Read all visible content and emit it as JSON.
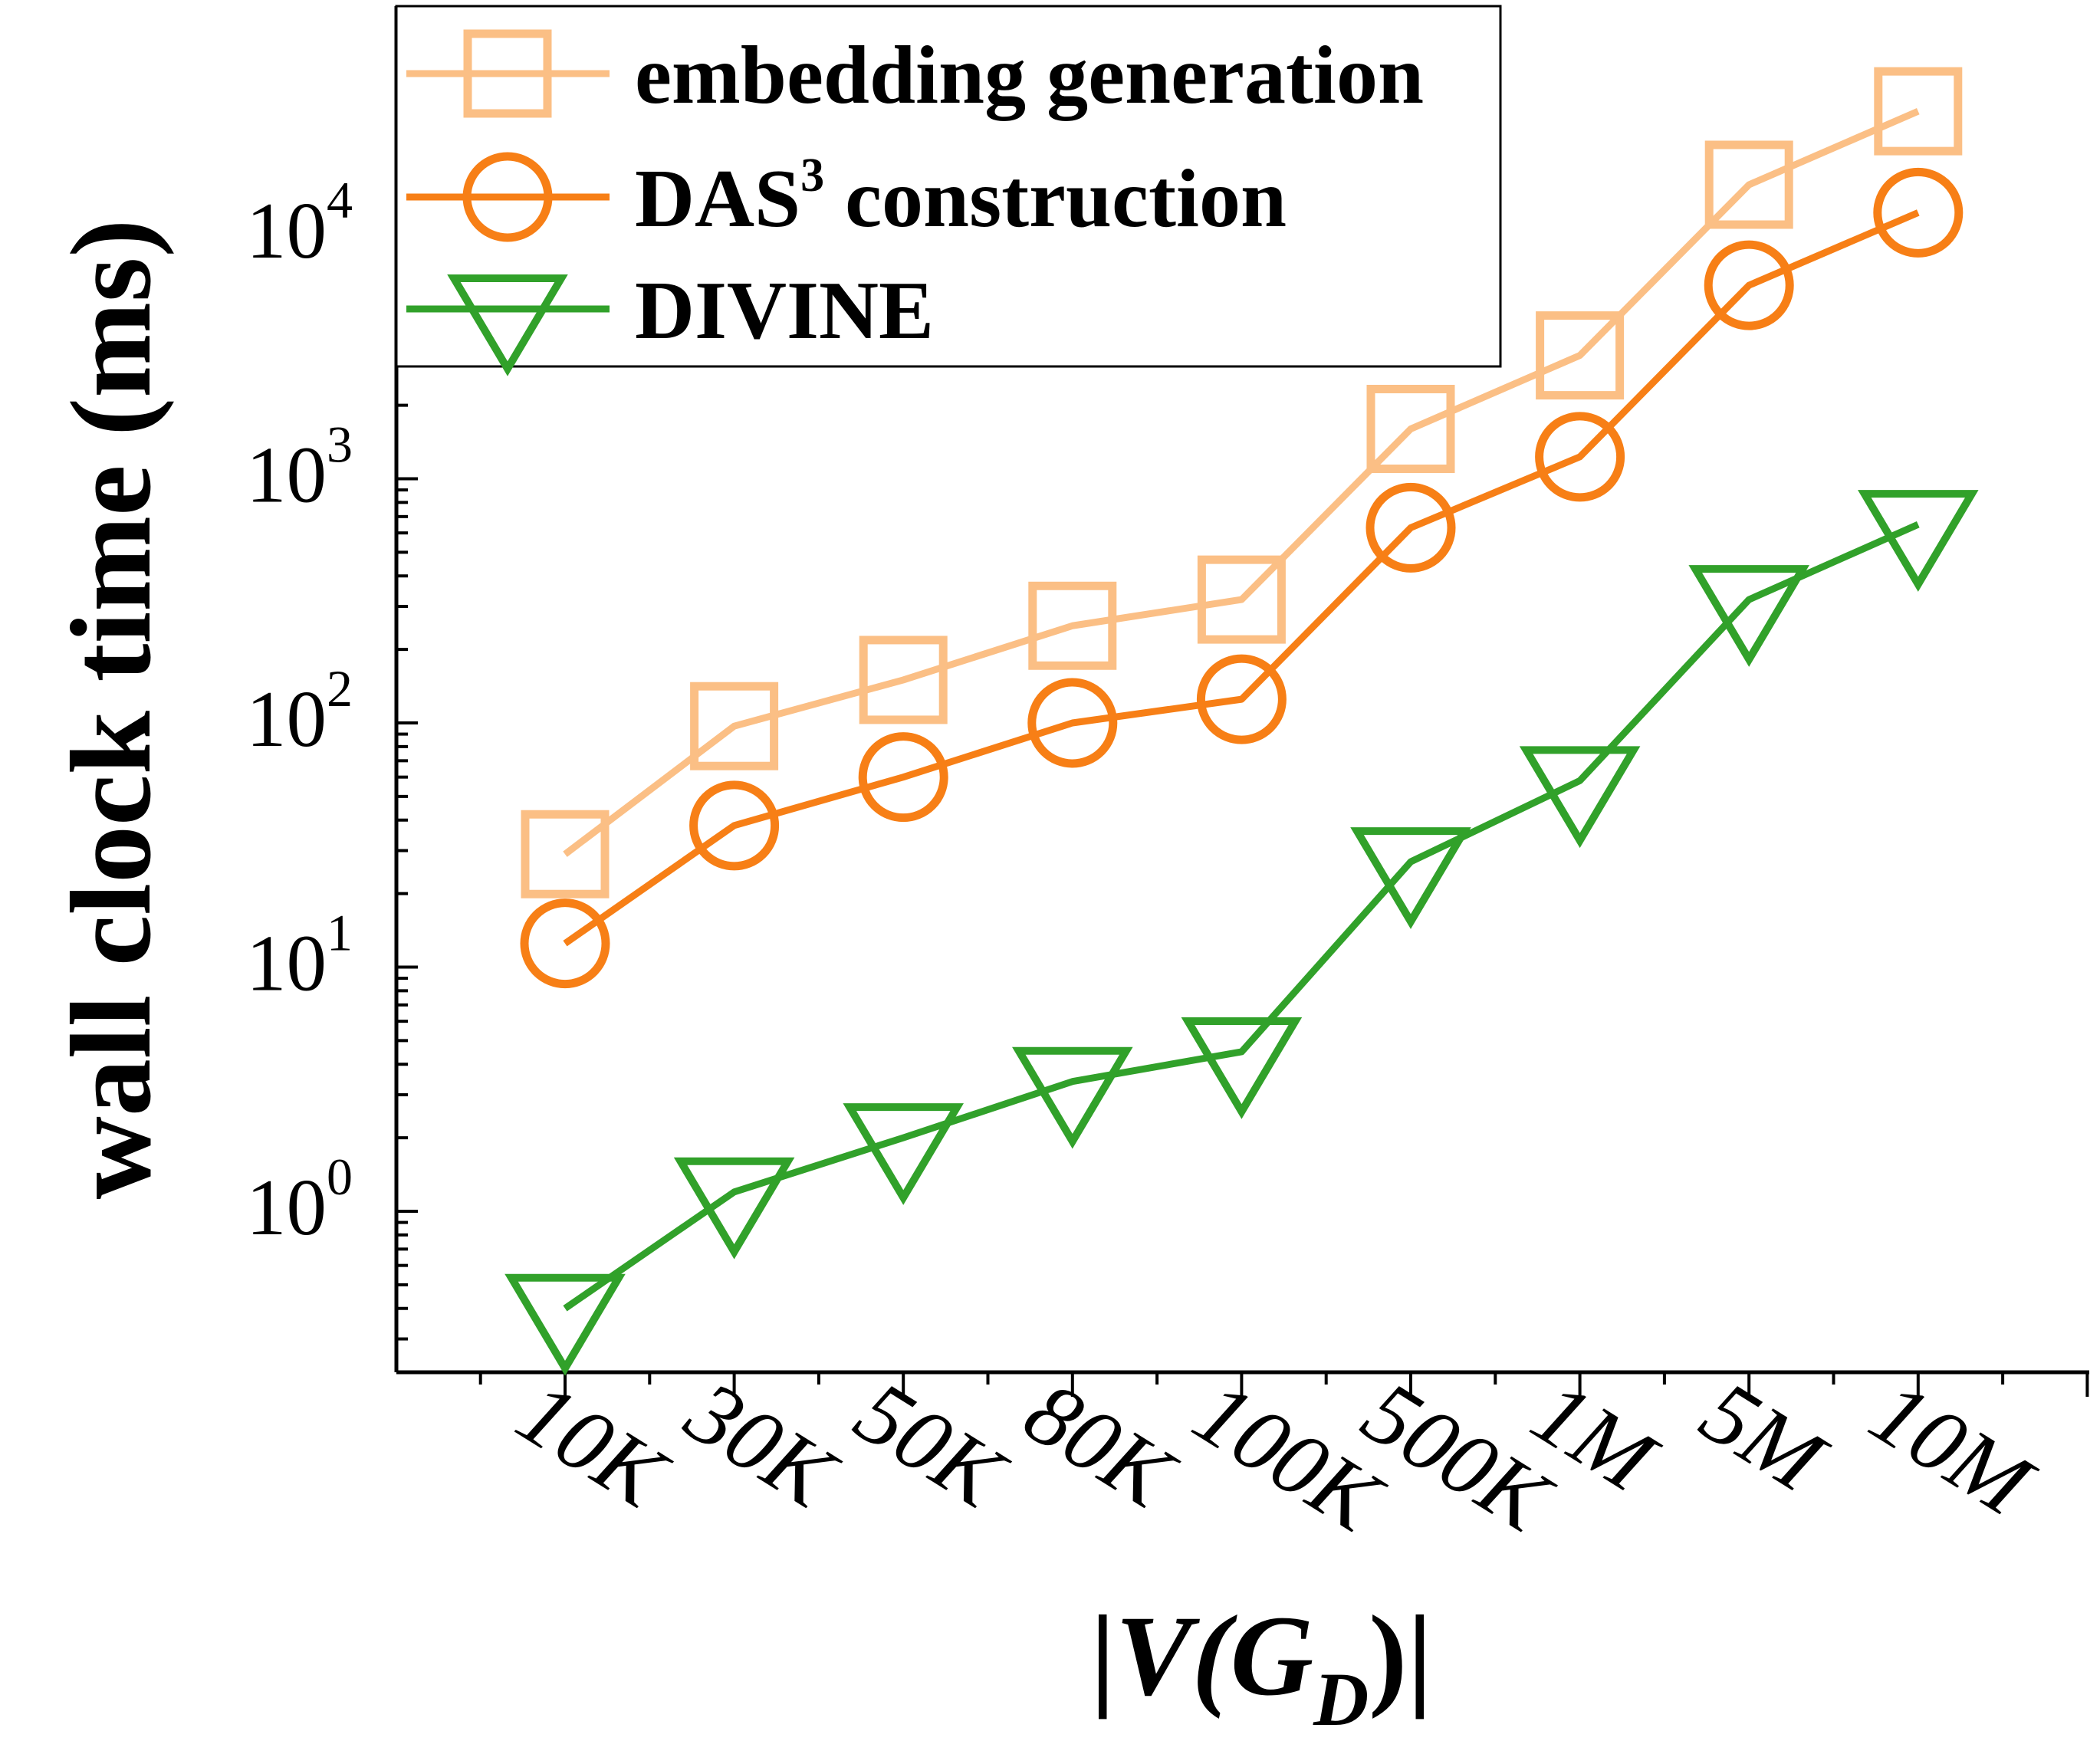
{
  "chart_data": {
    "type": "line",
    "title": "",
    "xlabel": {
      "prefix": "|",
      "main": "V(G",
      "sub": "D",
      "suffix": ")|"
    },
    "ylabel": "wall clock time (ms)",
    "yscale": "log",
    "ylim": [
      0.22,
      90000
    ],
    "categories": [
      "10K",
      "30K",
      "50K",
      "80K",
      "100K",
      "500K",
      "1M",
      "5M",
      "10M"
    ],
    "yticks": [
      {
        "value": 1,
        "base": "10",
        "exp": "0"
      },
      {
        "value": 10,
        "base": "10",
        "exp": "1"
      },
      {
        "value": 100,
        "base": "10",
        "exp": "2"
      },
      {
        "value": 1000,
        "base": "10",
        "exp": "3"
      },
      {
        "value": 10000,
        "base": "10",
        "exp": "4"
      }
    ],
    "series": [
      {
        "name": "embedding generation",
        "legend_main": "embedding generation",
        "legend_sup": "",
        "legend_rest": "",
        "marker": "square",
        "color": "#fbbf85",
        "values": [
          29,
          97,
          150,
          250,
          320,
          1600,
          3200,
          16000,
          32000
        ]
      },
      {
        "name": "DAS³ construction",
        "legend_main": "DAS",
        "legend_sup": "3",
        "legend_rest": " construction",
        "marker": "circle",
        "color": "#f77f16",
        "values": [
          12.5,
          38,
          60,
          100,
          125,
          630,
          1230,
          6200,
          12300
        ]
      },
      {
        "name": "DIVINE",
        "legend_main": "DIVINE",
        "legend_sup": "",
        "legend_rest": "",
        "marker": "triangle-down",
        "color": "#31a12a",
        "values": [
          0.4,
          1.2,
          2.0,
          3.4,
          4.5,
          27,
          58,
          320,
          650
        ]
      }
    ],
    "legend_position": "top-left",
    "grid": false
  }
}
